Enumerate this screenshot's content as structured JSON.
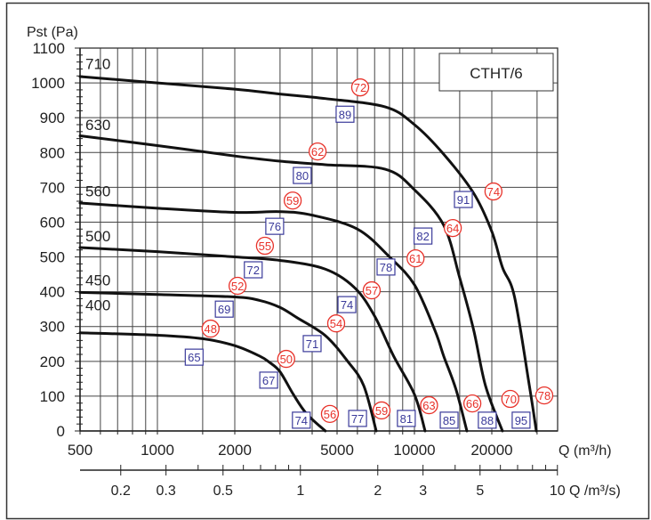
{
  "chart_data": {
    "type": "line",
    "title": "",
    "legend_box": "CTHT/6",
    "ylabel": "Pst (Pa)",
    "xlabel": "Q (m³/h)",
    "x2label": "Q /m³/s)",
    "x_scale": "log",
    "xlim": [
      500,
      36000
    ],
    "ylim": [
      0,
      1100
    ],
    "grid": true,
    "y_ticks": [
      0,
      100,
      200,
      300,
      400,
      500,
      600,
      700,
      800,
      900,
      1000,
      1100
    ],
    "x_tick_labels": [
      {
        "value": 500,
        "label": "500"
      },
      {
        "value": 1000,
        "label": "1000"
      },
      {
        "value": 2000,
        "label": "2000"
      },
      {
        "value": 5000,
        "label": "5000"
      },
      {
        "value": 10000,
        "label": "10000"
      },
      {
        "value": 20000,
        "label": "20000"
      }
    ],
    "x_grid_values": [
      600,
      700,
      800,
      900,
      1000,
      1500,
      2000,
      3000,
      4000,
      5000,
      6000,
      7000,
      8000,
      9000,
      10000,
      15000,
      20000,
      30000
    ],
    "x2_tick_labels": [
      {
        "value": 0.2,
        "label": "0.2"
      },
      {
        "value": 0.3,
        "label": "0.3"
      },
      {
        "value": 0.5,
        "label": "0.5"
      },
      {
        "value": 1,
        "label": "1"
      },
      {
        "value": 2,
        "label": "2"
      },
      {
        "value": 3,
        "label": "3"
      },
      {
        "value": 5,
        "label": "5"
      },
      {
        "value": 10,
        "label": "10"
      }
    ],
    "x2_minor_ticks": [
      0.4,
      0.6,
      0.7,
      0.8,
      0.9,
      4,
      6,
      7,
      8,
      9
    ],
    "series": [
      {
        "name": "400",
        "label_p": 362,
        "points": [
          [
            500,
            282
          ],
          [
            1000,
            275
          ],
          [
            1500,
            265
          ],
          [
            2000,
            245
          ],
          [
            2500,
            215
          ],
          [
            2730,
            197
          ],
          [
            3000,
            170
          ],
          [
            3380,
            105
          ],
          [
            3800,
            50
          ],
          [
            4500,
            0
          ]
        ]
      },
      {
        "name": "450",
        "label_p": 433,
        "points": [
          [
            500,
            398
          ],
          [
            1000,
            392
          ],
          [
            2000,
            385
          ],
          [
            2500,
            375
          ],
          [
            3000,
            355
          ],
          [
            3500,
            325
          ],
          [
            4500,
            274
          ],
          [
            5500,
            200
          ],
          [
            6350,
            130
          ],
          [
            7100,
            0
          ]
        ]
      },
      {
        "name": "500",
        "label_p": 560,
        "points": [
          [
            500,
            527
          ],
          [
            1000,
            515
          ],
          [
            2000,
            500
          ],
          [
            3000,
            490
          ],
          [
            4500,
            465
          ],
          [
            5860,
            411
          ],
          [
            7000,
            330
          ],
          [
            8300,
            215
          ],
          [
            10000,
            105
          ],
          [
            11000,
            0
          ]
        ]
      },
      {
        "name": "560",
        "label_p": 690,
        "points": [
          [
            500,
            655
          ],
          [
            1000,
            640
          ],
          [
            2000,
            628
          ],
          [
            3000,
            630
          ],
          [
            4000,
            620
          ],
          [
            6000,
            580
          ],
          [
            8000,
            500
          ],
          [
            10000,
            420
          ],
          [
            12000,
            290
          ],
          [
            13000,
            215
          ],
          [
            14500,
            120
          ],
          [
            16000,
            0
          ]
        ]
      },
      {
        "name": "630",
        "label_p": 880,
        "points": [
          [
            500,
            848
          ],
          [
            1000,
            820
          ],
          [
            2000,
            790
          ],
          [
            3000,
            775
          ],
          [
            4500,
            765
          ],
          [
            7700,
            752
          ],
          [
            10000,
            693
          ],
          [
            13000,
            591
          ],
          [
            15000,
            440
          ],
          [
            17000,
            290
          ],
          [
            18900,
            130
          ],
          [
            22000,
            0
          ]
        ]
      },
      {
        "name": "710",
        "label_p": 1055,
        "points": [
          [
            500,
            1018
          ],
          [
            1000,
            1000
          ],
          [
            2000,
            982
          ],
          [
            3000,
            968
          ],
          [
            4500,
            955
          ],
          [
            7700,
            931
          ],
          [
            10000,
            880
          ],
          [
            13000,
            795
          ],
          [
            17000,
            683
          ],
          [
            20000,
            573
          ],
          [
            22000,
            470
          ],
          [
            24500,
            386
          ],
          [
            28000,
            130
          ],
          [
            29800,
            0
          ]
        ]
      }
    ],
    "circle_markers": {
      "color": "#e8322a",
      "items": [
        {
          "label": "72",
          "q": 6150,
          "p": 987
        },
        {
          "label": "62",
          "q": 4200,
          "p": 803
        },
        {
          "label": "59",
          "q": 3360,
          "p": 662
        },
        {
          "label": "55",
          "q": 2620,
          "p": 532
        },
        {
          "label": "52",
          "q": 2050,
          "p": 417
        },
        {
          "label": "48",
          "q": 1610,
          "p": 294
        },
        {
          "label": "74",
          "q": 20300,
          "p": 688
        },
        {
          "label": "64",
          "q": 14100,
          "p": 583
        },
        {
          "label": "61",
          "q": 10100,
          "p": 496
        },
        {
          "label": "57",
          "q": 6820,
          "p": 404
        },
        {
          "label": "54",
          "q": 4960,
          "p": 309
        },
        {
          "label": "50",
          "q": 3170,
          "p": 207
        },
        {
          "label": "56",
          "q": 4690,
          "p": 49
        },
        {
          "label": "59",
          "q": 7450,
          "p": 59
        },
        {
          "label": "63",
          "q": 11400,
          "p": 74
        },
        {
          "label": "66",
          "q": 16800,
          "p": 79
        },
        {
          "label": "70",
          "q": 23600,
          "p": 92
        },
        {
          "label": "78",
          "q": 32000,
          "p": 102
        }
      ]
    },
    "square_markers": {
      "color": "#3a3a9a",
      "items": [
        {
          "label": "89",
          "q": 5370,
          "p": 910
        },
        {
          "label": "80",
          "q": 3660,
          "p": 734
        },
        {
          "label": "76",
          "q": 2860,
          "p": 588
        },
        {
          "label": "72",
          "q": 2360,
          "p": 463
        },
        {
          "label": "69",
          "q": 1820,
          "p": 350
        },
        {
          "label": "65",
          "q": 1390,
          "p": 212
        },
        {
          "label": "91",
          "q": 15500,
          "p": 665
        },
        {
          "label": "82",
          "q": 10800,
          "p": 560
        },
        {
          "label": "78",
          "q": 7750,
          "p": 471
        },
        {
          "label": "74",
          "q": 5460,
          "p": 363
        },
        {
          "label": "71",
          "q": 4000,
          "p": 251
        },
        {
          "label": "67",
          "q": 2710,
          "p": 146
        },
        {
          "label": "74",
          "q": 3630,
          "p": 31
        },
        {
          "label": "77",
          "q": 6010,
          "p": 36
        },
        {
          "label": "81",
          "q": 9300,
          "p": 36
        },
        {
          "label": "85",
          "q": 13650,
          "p": 31
        },
        {
          "label": "88",
          "q": 19200,
          "p": 31
        },
        {
          "label": "95",
          "q": 26000,
          "p": 31
        }
      ]
    }
  }
}
